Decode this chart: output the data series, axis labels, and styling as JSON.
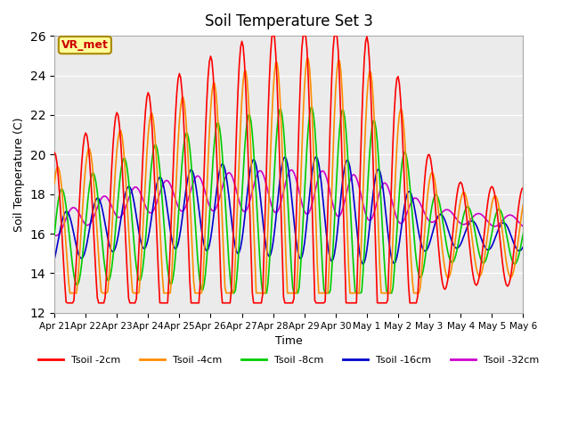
{
  "title": "Soil Temperature Set 3",
  "xlabel": "Time",
  "ylabel": "Soil Temperature (C)",
  "ylim": [
    12,
    26
  ],
  "yticks": [
    12,
    14,
    16,
    18,
    20,
    22,
    24,
    26
  ],
  "x_labels": [
    "Apr 21",
    "Apr 22",
    "Apr 23",
    "Apr 24",
    "Apr 25",
    "Apr 26",
    "Apr 27",
    "Apr 28",
    "Apr 29",
    "Apr 30",
    "May 1",
    "May 2",
    "May 3",
    "May 4",
    "May 5",
    "May 6"
  ],
  "colors": {
    "Tsoil -2cm": "#FF0000",
    "Tsoil -4cm": "#FF8C00",
    "Tsoil -8cm": "#00CC00",
    "Tsoil -16cm": "#0000CC",
    "Tsoil -32cm": "#CC00CC"
  },
  "plot_bg_color": "#EBEBEB",
  "grid_color": "#FFFFFF",
  "vr_met_text": "VR_met",
  "vr_met_bg": "#FFFF99",
  "vr_met_border": "#AA8800",
  "vr_met_textcolor": "#CC0000"
}
